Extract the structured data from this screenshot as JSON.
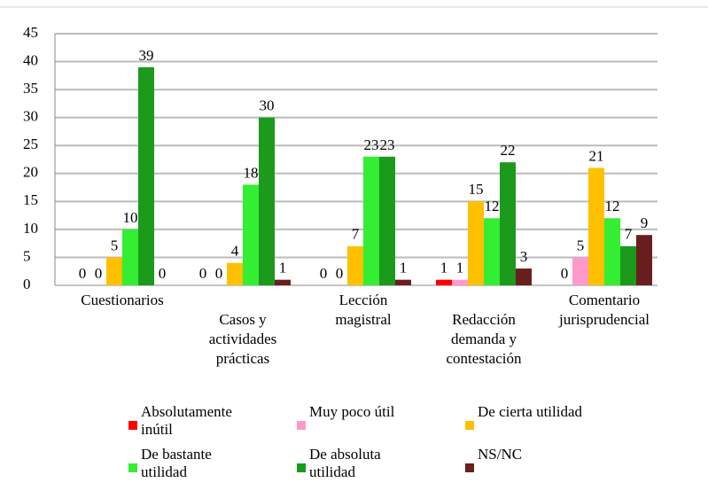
{
  "chart_data": {
    "type": "bar",
    "categories": [
      "Cuestionarios",
      "Casos y actividades prácticas",
      "Lección magistral",
      "Redacción demanda y contestación",
      "Comentario jurisprudencial"
    ],
    "series": [
      {
        "name": "Absolutamente inútil",
        "color": "#ff0000",
        "values": [
          0,
          0,
          0,
          1,
          0
        ]
      },
      {
        "name": "Muy poco útil",
        "color": "#ff99cc",
        "values": [
          0,
          0,
          0,
          1,
          5
        ]
      },
      {
        "name": "De cierta utilidad",
        "color": "#ffc000",
        "values": [
          5,
          4,
          7,
          15,
          21
        ]
      },
      {
        "name": "De bastante utilidad",
        "color": "#33ee33",
        "values": [
          10,
          18,
          23,
          12,
          12
        ]
      },
      {
        "name": "De absoluta utilidad",
        "color": "#1b9a1b",
        "values": [
          39,
          30,
          23,
          22,
          7
        ]
      },
      {
        "name": "NS/NC",
        "color": "#6b1e1e",
        "values": [
          0,
          1,
          1,
          3,
          9
        ]
      }
    ],
    "ylim": [
      0,
      45
    ],
    "yticks": [
      0,
      5,
      10,
      15,
      20,
      25,
      30,
      35,
      40,
      45
    ],
    "grid": true
  }
}
